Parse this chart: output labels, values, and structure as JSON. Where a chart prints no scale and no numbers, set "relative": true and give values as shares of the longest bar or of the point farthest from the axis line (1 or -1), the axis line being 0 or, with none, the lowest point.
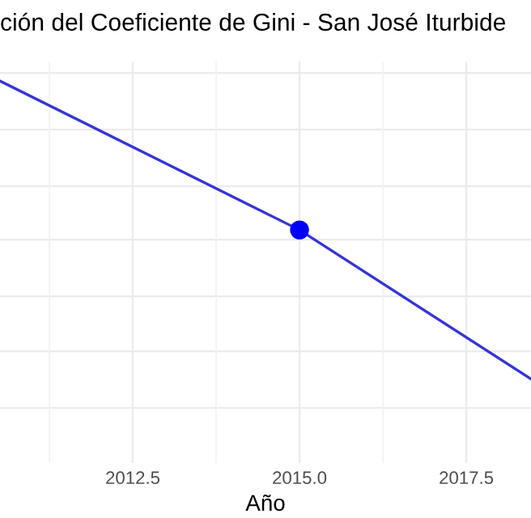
{
  "chart_data": {
    "type": "line",
    "title": "ción del Coeficiente de Gini - San José Iturbide",
    "xlabel": "Año",
    "relative": true,
    "xlim": [
      2010.51,
      2018.47
    ],
    "xticks": [
      {
        "value": 2012.5,
        "label": "2012.5"
      },
      {
        "value": 2015,
        "label": "2015.0"
      },
      {
        "value": 2017.5,
        "label": "2017.5"
      }
    ],
    "tick_labels": "x",
    "grid": true,
    "series": [
      {
        "color": "#3535d6",
        "x": [
          2010.51,
          2015,
          2018.47
        ],
        "values": [
          1,
          0.61,
          0.22
        ]
      },
      {
        "type": "scatter",
        "color": "#0000ff",
        "marker": "circle",
        "x": [
          2015
        ],
        "values": [
          0.61
        ]
      }
    ]
  }
}
